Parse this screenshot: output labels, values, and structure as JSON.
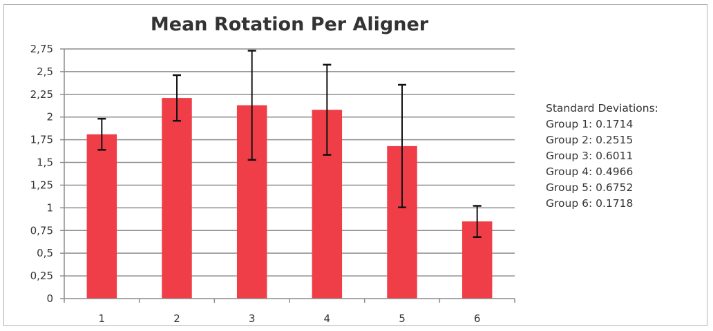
{
  "chart_data": {
    "type": "bar",
    "title": "Mean Rotation Per Aligner",
    "categories": [
      "1",
      "2",
      "3",
      "4",
      "5",
      "6"
    ],
    "values": [
      1.81,
      2.21,
      2.13,
      2.08,
      1.68,
      0.85
    ],
    "error": [
      0.1714,
      0.2515,
      0.6011,
      0.4966,
      0.6752,
      0.1718
    ],
    "ylim": [
      0,
      2.75
    ],
    "yticks": [
      {
        "value": 0,
        "label": "0"
      },
      {
        "value": 0.25,
        "label": "0,25"
      },
      {
        "value": 0.5,
        "label": "0,5"
      },
      {
        "value": 0.75,
        "label": "0,75"
      },
      {
        "value": 1,
        "label": "1"
      },
      {
        "value": 1.25,
        "label": "1,25"
      },
      {
        "value": 1.5,
        "label": "1,5"
      },
      {
        "value": 1.75,
        "label": "1,75"
      },
      {
        "value": 2,
        "label": "2"
      },
      {
        "value": 2.25,
        "label": "2,25"
      },
      {
        "value": 2.5,
        "label": "2,5"
      },
      {
        "value": 2.75,
        "label": "2,75"
      }
    ],
    "grid": true,
    "bar_color": "#ef3e48",
    "annotation": {
      "heading": "Standard Deviations:",
      "lines": [
        "Group 1: 0.1714",
        "Group 2: 0.2515",
        "Group 3: 0.6011",
        "Group 4: 0.4966",
        "Group 5: 0.6752",
        "Group 6: 0.1718"
      ]
    }
  }
}
